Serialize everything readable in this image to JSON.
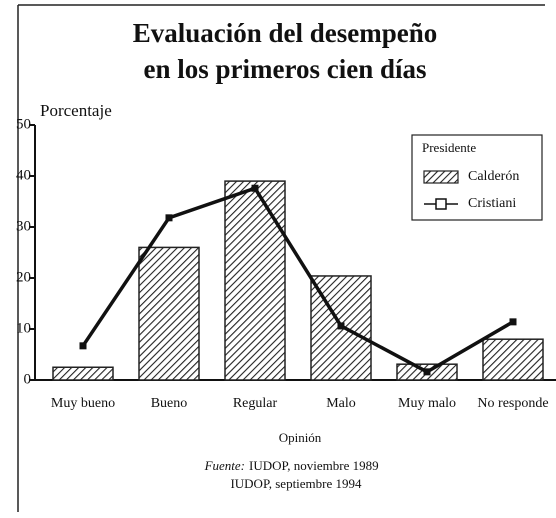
{
  "chart_data": {
    "type": "bar_line",
    "title": [
      "Evaluación del desempeño",
      "en los primeros cien días"
    ],
    "y_label": "Porcentaje",
    "x_label": "Opinión",
    "categories": [
      "Muy bueno",
      "Bueno",
      "Regular",
      "Malo",
      "Muy malo",
      "No responde"
    ],
    "series": [
      {
        "name": "Calderón",
        "type": "bar",
        "color": "#222222",
        "values": [
          2.5,
          26,
          39,
          20.4,
          3.1,
          8
        ]
      },
      {
        "name": "Cristiani",
        "type": "line",
        "color": "#111111",
        "values": [
          6.7,
          31.8,
          37.6,
          10.6,
          1.6,
          11.4
        ]
      }
    ],
    "legend_title": "Presidente",
    "legend": "upper right",
    "ylim": [
      0,
      50
    ],
    "yticks": [
      0,
      10,
      20,
      30,
      40,
      50
    ],
    "source_label": "Fuente:",
    "source": [
      "IUDOP, noviembre 1989",
      "IUDOP, septiembre 1994"
    ]
  }
}
